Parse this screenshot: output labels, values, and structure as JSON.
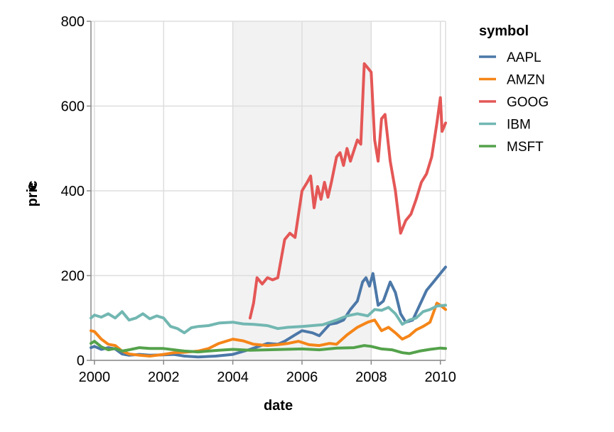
{
  "chart_data": {
    "type": "line",
    "xlabel": "date",
    "ylabel": "pric\ne",
    "ylim": [
      0,
      800
    ],
    "yticks": [
      0,
      200,
      400,
      600,
      800
    ],
    "xlim": [
      1999.9,
      2010.15
    ],
    "xticks": [
      2000,
      2002,
      2004,
      2006,
      2008,
      2010
    ],
    "xtick_labels": [
      "2000",
      "2002",
      "2004",
      "2006",
      "2008",
      "2010"
    ],
    "grid": true,
    "highlight_band": {
      "from": 2004.0,
      "to": 2008.0,
      "color": "#f2f2f2"
    },
    "legend": {
      "title": "symbol",
      "position": "right"
    },
    "series": [
      {
        "name": "AAPL",
        "color": "#4c78a8",
        "points": [
          [
            1999.9,
            30
          ],
          [
            2000.0,
            33
          ],
          [
            2000.2,
            26
          ],
          [
            2000.4,
            30
          ],
          [
            2000.6,
            27
          ],
          [
            2000.8,
            15
          ],
          [
            2001.0,
            12
          ],
          [
            2001.3,
            14
          ],
          [
            2001.6,
            12
          ],
          [
            2002.0,
            13
          ],
          [
            2002.3,
            14
          ],
          [
            2002.6,
            10
          ],
          [
            2003.0,
            8
          ],
          [
            2003.5,
            10
          ],
          [
            2004.0,
            14
          ],
          [
            2004.5,
            26
          ],
          [
            2005.0,
            40
          ],
          [
            2005.3,
            38
          ],
          [
            2005.5,
            45
          ],
          [
            2005.8,
            60
          ],
          [
            2006.0,
            70
          ],
          [
            2006.3,
            65
          ],
          [
            2006.5,
            58
          ],
          [
            2006.8,
            85
          ],
          [
            2007.0,
            88
          ],
          [
            2007.2,
            95
          ],
          [
            2007.4,
            120
          ],
          [
            2007.6,
            140
          ],
          [
            2007.75,
            185
          ],
          [
            2007.85,
            195
          ],
          [
            2007.95,
            175
          ],
          [
            2008.05,
            205
          ],
          [
            2008.2,
            130
          ],
          [
            2008.35,
            140
          ],
          [
            2008.55,
            185
          ],
          [
            2008.7,
            160
          ],
          [
            2008.85,
            110
          ],
          [
            2009.0,
            90
          ],
          [
            2009.2,
            95
          ],
          [
            2009.4,
            130
          ],
          [
            2009.6,
            165
          ],
          [
            2009.8,
            185
          ],
          [
            2010.0,
            205
          ],
          [
            2010.15,
            220
          ]
        ]
      },
      {
        "name": "AMZN",
        "color": "#f58518",
        "points": [
          [
            1999.9,
            70
          ],
          [
            2000.0,
            68
          ],
          [
            2000.2,
            50
          ],
          [
            2000.4,
            38
          ],
          [
            2000.6,
            35
          ],
          [
            2000.8,
            22
          ],
          [
            2001.0,
            15
          ],
          [
            2001.3,
            12
          ],
          [
            2001.6,
            10
          ],
          [
            2002.0,
            14
          ],
          [
            2002.3,
            18
          ],
          [
            2002.6,
            19
          ],
          [
            2003.0,
            22
          ],
          [
            2003.3,
            28
          ],
          [
            2003.6,
            40
          ],
          [
            2004.0,
            50
          ],
          [
            2004.3,
            46
          ],
          [
            2004.6,
            38
          ],
          [
            2005.0,
            35
          ],
          [
            2005.3,
            37
          ],
          [
            2005.6,
            40
          ],
          [
            2005.9,
            45
          ],
          [
            2006.2,
            37
          ],
          [
            2006.5,
            35
          ],
          [
            2006.8,
            40
          ],
          [
            2007.0,
            38
          ],
          [
            2007.3,
            60
          ],
          [
            2007.6,
            78
          ],
          [
            2007.9,
            90
          ],
          [
            2008.1,
            95
          ],
          [
            2008.3,
            70
          ],
          [
            2008.5,
            78
          ],
          [
            2008.7,
            65
          ],
          [
            2008.9,
            50
          ],
          [
            2009.1,
            58
          ],
          [
            2009.3,
            72
          ],
          [
            2009.5,
            80
          ],
          [
            2009.7,
            90
          ],
          [
            2009.9,
            135
          ],
          [
            2010.0,
            130
          ],
          [
            2010.15,
            120
          ]
        ]
      },
      {
        "name": "GOOG",
        "color": "#e45756",
        "points": [
          [
            2004.5,
            100
          ],
          [
            2004.6,
            135
          ],
          [
            2004.7,
            195
          ],
          [
            2004.85,
            180
          ],
          [
            2005.0,
            195
          ],
          [
            2005.15,
            190
          ],
          [
            2005.3,
            195
          ],
          [
            2005.5,
            285
          ],
          [
            2005.65,
            300
          ],
          [
            2005.8,
            290
          ],
          [
            2006.0,
            400
          ],
          [
            2006.15,
            420
          ],
          [
            2006.25,
            435
          ],
          [
            2006.35,
            360
          ],
          [
            2006.45,
            410
          ],
          [
            2006.55,
            380
          ],
          [
            2006.65,
            420
          ],
          [
            2006.75,
            385
          ],
          [
            2006.85,
            420
          ],
          [
            2007.0,
            480
          ],
          [
            2007.1,
            490
          ],
          [
            2007.2,
            460
          ],
          [
            2007.3,
            500
          ],
          [
            2007.4,
            470
          ],
          [
            2007.6,
            520
          ],
          [
            2007.7,
            510
          ],
          [
            2007.8,
            700
          ],
          [
            2007.9,
            690
          ],
          [
            2008.0,
            680
          ],
          [
            2008.1,
            520
          ],
          [
            2008.2,
            470
          ],
          [
            2008.3,
            570
          ],
          [
            2008.4,
            580
          ],
          [
            2008.55,
            470
          ],
          [
            2008.7,
            400
          ],
          [
            2008.85,
            300
          ],
          [
            2009.0,
            330
          ],
          [
            2009.15,
            345
          ],
          [
            2009.3,
            380
          ],
          [
            2009.45,
            420
          ],
          [
            2009.6,
            440
          ],
          [
            2009.75,
            480
          ],
          [
            2009.9,
            560
          ],
          [
            2010.0,
            620
          ],
          [
            2010.05,
            540
          ],
          [
            2010.15,
            560
          ]
        ]
      },
      {
        "name": "IBM",
        "color": "#72b7b2",
        "points": [
          [
            1999.9,
            100
          ],
          [
            2000.0,
            107
          ],
          [
            2000.2,
            102
          ],
          [
            2000.4,
            110
          ],
          [
            2000.6,
            100
          ],
          [
            2000.8,
            115
          ],
          [
            2001.0,
            95
          ],
          [
            2001.2,
            100
          ],
          [
            2001.4,
            110
          ],
          [
            2001.6,
            98
          ],
          [
            2001.8,
            105
          ],
          [
            2002.0,
            100
          ],
          [
            2002.2,
            80
          ],
          [
            2002.4,
            75
          ],
          [
            2002.6,
            65
          ],
          [
            2002.8,
            77
          ],
          [
            2003.0,
            80
          ],
          [
            2003.3,
            82
          ],
          [
            2003.6,
            88
          ],
          [
            2004.0,
            90
          ],
          [
            2004.3,
            86
          ],
          [
            2004.6,
            85
          ],
          [
            2005.0,
            82
          ],
          [
            2005.3,
            75
          ],
          [
            2005.6,
            78
          ],
          [
            2006.0,
            80
          ],
          [
            2006.3,
            82
          ],
          [
            2006.6,
            84
          ],
          [
            2007.0,
            95
          ],
          [
            2007.3,
            105
          ],
          [
            2007.6,
            110
          ],
          [
            2007.9,
            105
          ],
          [
            2008.1,
            120
          ],
          [
            2008.3,
            118
          ],
          [
            2008.5,
            125
          ],
          [
            2008.7,
            110
          ],
          [
            2008.9,
            85
          ],
          [
            2009.1,
            95
          ],
          [
            2009.3,
            100
          ],
          [
            2009.5,
            115
          ],
          [
            2009.7,
            120
          ],
          [
            2009.9,
            128
          ],
          [
            2010.15,
            130
          ]
        ]
      },
      {
        "name": "MSFT",
        "color": "#54a24b",
        "points": [
          [
            1999.9,
            40
          ],
          [
            2000.0,
            45
          ],
          [
            2000.2,
            32
          ],
          [
            2000.4,
            25
          ],
          [
            2000.6,
            28
          ],
          [
            2000.8,
            22
          ],
          [
            2001.0,
            25
          ],
          [
            2001.3,
            30
          ],
          [
            2001.6,
            28
          ],
          [
            2002.0,
            28
          ],
          [
            2002.3,
            25
          ],
          [
            2002.6,
            22
          ],
          [
            2003.0,
            20
          ],
          [
            2003.3,
            22
          ],
          [
            2003.6,
            24
          ],
          [
            2004.0,
            26
          ],
          [
            2004.5,
            24
          ],
          [
            2005.0,
            25
          ],
          [
            2005.5,
            26
          ],
          [
            2006.0,
            27
          ],
          [
            2006.5,
            25
          ],
          [
            2007.0,
            29
          ],
          [
            2007.5,
            30
          ],
          [
            2007.8,
            35
          ],
          [
            2008.0,
            33
          ],
          [
            2008.3,
            27
          ],
          [
            2008.6,
            25
          ],
          [
            2008.9,
            18
          ],
          [
            2009.1,
            16
          ],
          [
            2009.4,
            22
          ],
          [
            2009.7,
            26
          ],
          [
            2010.0,
            29
          ],
          [
            2010.15,
            28
          ]
        ]
      }
    ]
  }
}
